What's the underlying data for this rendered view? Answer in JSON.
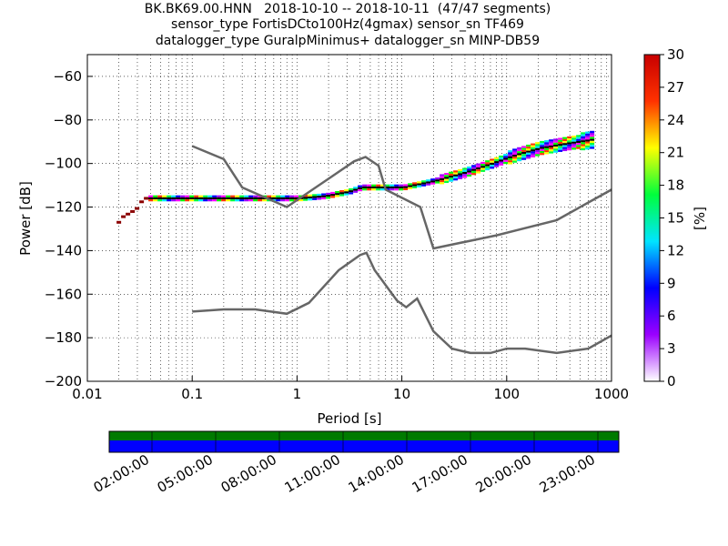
{
  "title": {
    "line1": "BK.BK69.00.HNN   2018-10-10 -- 2018-10-11  (47/47 segments)",
    "line2": "sensor_type FortisDCto100Hz(4gmax) sensor_sn TF469",
    "line3": "datalogger_type GuralpMinimus+ datalogger_sn MINP-DB59"
  },
  "chart_data": {
    "type": "heatmap",
    "xlabel": "Period [s]",
    "ylabel": "Power [dB]",
    "x_scale": "log",
    "xlim": [
      0.01,
      1000
    ],
    "ylim": [
      -200,
      -50
    ],
    "x_ticks": [
      0.01,
      0.1,
      1,
      10,
      100,
      1000
    ],
    "x_tick_labels": [
      "0.01",
      "0.1",
      "1",
      "10",
      "100",
      "1000"
    ],
    "y_ticks": [
      -200,
      -180,
      -160,
      -140,
      -120,
      -100,
      -80,
      -60
    ],
    "y_tick_labels": [
      "−200",
      "−180",
      "−160",
      "−140",
      "−120",
      "−100",
      "−80",
      "−60"
    ],
    "grid": true,
    "colorbar": {
      "label": "[%]",
      "range": [
        0,
        30
      ],
      "ticks": [
        0,
        3,
        6,
        9,
        12,
        15,
        18,
        21,
        24,
        27,
        30
      ],
      "tick_labels": [
        "0",
        "3",
        "6",
        "9",
        "12",
        "15",
        "18",
        "21",
        "24",
        "27",
        "30"
      ],
      "colors": [
        "#ffffff",
        "#9b00ff",
        "#0000ff",
        "#00e5ff",
        "#00ff3c",
        "#ffff00",
        "#ff3200",
        "#c80000"
      ]
    },
    "psd_band": [
      {
        "period": 0.019,
        "db": -127
      },
      {
        "period": 0.02,
        "db": -125
      },
      {
        "period": 0.028,
        "db": -121
      },
      {
        "period": 0.033,
        "db": -116
      },
      {
        "period": 1.0,
        "db": -116
      },
      {
        "period": 1.8,
        "db": -115
      },
      {
        "period": 3.0,
        "db": -113
      },
      {
        "period": 4.0,
        "db": -111
      },
      {
        "period": 10.0,
        "db": -111
      },
      {
        "period": 20.0,
        "db": -108
      },
      {
        "period": 40.0,
        "db": -104
      },
      {
        "period": 70.0,
        "db": -100
      },
      {
        "period": 120.0,
        "db": -96
      },
      {
        "period": 200.0,
        "db": -93
      },
      {
        "period": 350.0,
        "db": -91
      },
      {
        "period": 650.0,
        "db": -89
      }
    ],
    "series": [
      {
        "x": [
          0.1,
          0.2,
          0.3,
          0.8,
          2.0,
          3.5,
          4.5,
          6.0,
          7.0,
          15.0,
          20.0,
          80.0,
          300.0,
          1000.0
        ],
        "y": [
          -92,
          -98,
          -111,
          -120,
          -107,
          -99,
          -97,
          -101,
          -112,
          -120,
          -139,
          -133,
          -126,
          -112
        ]
      },
      {
        "x": [
          0.1,
          0.2,
          0.4,
          0.8,
          1.3,
          2.5,
          4.0,
          4.6,
          5.5,
          9.0,
          11.0,
          14.0,
          20.0,
          30.0,
          45.0,
          70.0,
          100.0,
          150.0,
          300.0,
          600.0,
          1000.0
        ],
        "y": [
          -168,
          -167,
          -167,
          -169,
          -164,
          -149,
          -142,
          -141,
          -149,
          -163,
          -166,
          -162,
          -177,
          -185,
          -187,
          -187,
          -185,
          -185,
          -187,
          -185,
          -179
        ]
      }
    ]
  },
  "timeline": {
    "tick_labels": [
      "02:00:00",
      "05:00:00",
      "08:00:00",
      "11:00:00",
      "14:00:00",
      "17:00:00",
      "20:00:00",
      "23:00:00"
    ],
    "top_color": "#007a00",
    "bottom_color": "#0000ff"
  }
}
